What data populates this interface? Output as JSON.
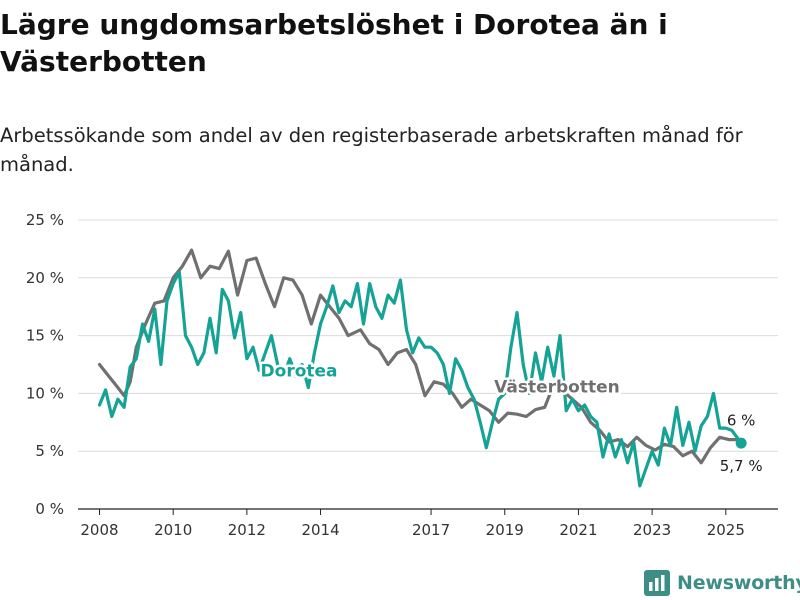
{
  "title": "Lägre ungdomsarbetslöshet i Dorotea än i Västerbotten",
  "subtitle": "Arbetssökande som andel av den registerbaserade arbetskraften månad för månad.",
  "brand": {
    "name": "Newsworthy",
    "icon": "bar-chart-logo-icon",
    "color": "#3d8f86"
  },
  "chart_data": {
    "type": "line",
    "title": "Lägre ungdomsarbetslöshet i Dorotea än i Västerbotten",
    "subtitle": "Arbetssökande som andel av den registerbaserade arbetskraften månad för månad.",
    "xlabel": "",
    "ylabel": "",
    "xlim": [
      "2007-06",
      "2026-06"
    ],
    "ylim": [
      0,
      25
    ],
    "y_ticks": [
      0,
      5,
      10,
      15,
      20,
      25
    ],
    "y_tick_labels": [
      "0 %",
      "5 %",
      "10 %",
      "15 %",
      "20 %",
      "25 %"
    ],
    "x_ticks": [
      "2008-01",
      "2010-01",
      "2012-01",
      "2014-01",
      "2017-01",
      "2019-01",
      "2021-01",
      "2023-01",
      "2025-01"
    ],
    "x_tick_labels": [
      "2008",
      "2010",
      "2012",
      "2014",
      "2017",
      "2019",
      "2021",
      "2023",
      "2025"
    ],
    "grid": true,
    "legend": "none",
    "series": [
      {
        "name": "Västerbotten",
        "color": "#707070",
        "label_anchor": "2020-06",
        "end_label": "6 %",
        "points": [
          [
            "2008-01",
            12.5
          ],
          [
            "2008-04",
            11.5
          ],
          [
            "2008-07",
            10.5
          ],
          [
            "2008-09",
            9.8
          ],
          [
            "2008-11",
            11.0
          ],
          [
            "2009-01",
            14.0
          ],
          [
            "2009-04",
            16.0
          ],
          [
            "2009-07",
            17.8
          ],
          [
            "2009-10",
            18.0
          ],
          [
            "2010-01",
            20.0
          ],
          [
            "2010-04",
            21.0
          ],
          [
            "2010-07",
            22.4
          ],
          [
            "2010-10",
            20.0
          ],
          [
            "2011-01",
            21.0
          ],
          [
            "2011-04",
            20.8
          ],
          [
            "2011-07",
            22.3
          ],
          [
            "2011-10",
            18.5
          ],
          [
            "2012-01",
            21.5
          ],
          [
            "2012-04",
            21.7
          ],
          [
            "2012-07",
            19.5
          ],
          [
            "2012-10",
            17.5
          ],
          [
            "2013-01",
            20.0
          ],
          [
            "2013-04",
            19.8
          ],
          [
            "2013-07",
            18.5
          ],
          [
            "2013-10",
            16.0
          ],
          [
            "2014-01",
            18.5
          ],
          [
            "2014-04",
            17.5
          ],
          [
            "2014-07",
            16.5
          ],
          [
            "2014-10",
            15.0
          ],
          [
            "2015-02",
            15.5
          ],
          [
            "2015-05",
            14.3
          ],
          [
            "2015-08",
            13.8
          ],
          [
            "2015-11",
            12.5
          ],
          [
            "2016-02",
            13.5
          ],
          [
            "2016-05",
            13.8
          ],
          [
            "2016-08",
            12.5
          ],
          [
            "2016-11",
            9.8
          ],
          [
            "2017-02",
            11.0
          ],
          [
            "2017-05",
            10.8
          ],
          [
            "2017-08",
            10.0
          ],
          [
            "2017-11",
            8.8
          ],
          [
            "2018-02",
            9.5
          ],
          [
            "2018-05",
            9.0
          ],
          [
            "2018-08",
            8.5
          ],
          [
            "2018-11",
            7.5
          ],
          [
            "2019-02",
            8.3
          ],
          [
            "2019-05",
            8.2
          ],
          [
            "2019-08",
            8.0
          ],
          [
            "2019-11",
            8.6
          ],
          [
            "2020-02",
            8.8
          ],
          [
            "2020-05",
            10.8
          ],
          [
            "2020-08",
            10.2
          ],
          [
            "2020-11",
            9.5
          ],
          [
            "2021-02",
            8.8
          ],
          [
            "2021-05",
            7.5
          ],
          [
            "2021-08",
            6.8
          ],
          [
            "2021-11",
            5.8
          ],
          [
            "2022-02",
            6.0
          ],
          [
            "2022-05",
            5.4
          ],
          [
            "2022-08",
            6.2
          ],
          [
            "2022-11",
            5.5
          ],
          [
            "2023-02",
            5.1
          ],
          [
            "2023-05",
            5.6
          ],
          [
            "2023-08",
            5.4
          ],
          [
            "2023-11",
            4.6
          ],
          [
            "2024-02",
            5.0
          ],
          [
            "2024-05",
            4.0
          ],
          [
            "2024-08",
            5.3
          ],
          [
            "2024-11",
            6.2
          ],
          [
            "2025-02",
            6.0
          ],
          [
            "2025-06",
            6.0
          ]
        ]
      },
      {
        "name": "Dorotea",
        "color": "#15a396",
        "label_anchor": "2013-06",
        "end_label": "5,7 %",
        "points": [
          [
            "2008-01",
            9.0
          ],
          [
            "2008-03",
            10.3
          ],
          [
            "2008-05",
            8.0
          ],
          [
            "2008-07",
            9.5
          ],
          [
            "2008-09",
            8.8
          ],
          [
            "2008-11",
            12.3
          ],
          [
            "2009-01",
            13.0
          ],
          [
            "2009-03",
            16.0
          ],
          [
            "2009-05",
            14.5
          ],
          [
            "2009-07",
            17.3
          ],
          [
            "2009-09",
            12.5
          ],
          [
            "2009-11",
            18.0
          ],
          [
            "2010-01",
            19.5
          ],
          [
            "2010-03",
            20.5
          ],
          [
            "2010-05",
            15.0
          ],
          [
            "2010-07",
            14.0
          ],
          [
            "2010-09",
            12.5
          ],
          [
            "2010-11",
            13.5
          ],
          [
            "2011-01",
            16.5
          ],
          [
            "2011-03",
            13.5
          ],
          [
            "2011-05",
            19.0
          ],
          [
            "2011-07",
            18.0
          ],
          [
            "2011-09",
            14.8
          ],
          [
            "2011-11",
            17.0
          ],
          [
            "2012-01",
            13.0
          ],
          [
            "2012-03",
            14.0
          ],
          [
            "2012-05",
            12.0
          ],
          [
            "2012-07",
            13.5
          ],
          [
            "2012-09",
            15.0
          ],
          [
            "2012-11",
            12.5
          ],
          [
            "2013-01",
            11.5
          ],
          [
            "2013-03",
            13.0
          ],
          [
            "2013-05",
            11.5
          ],
          [
            "2013-07",
            12.5
          ],
          [
            "2013-09",
            10.5
          ],
          [
            "2013-11",
            13.5
          ],
          [
            "2014-01",
            16.0
          ],
          [
            "2014-03",
            17.5
          ],
          [
            "2014-05",
            19.3
          ],
          [
            "2014-07",
            17.0
          ],
          [
            "2014-09",
            18.0
          ],
          [
            "2014-11",
            17.5
          ],
          [
            "2015-01",
            19.5
          ],
          [
            "2015-03",
            16.0
          ],
          [
            "2015-05",
            19.5
          ],
          [
            "2015-07",
            17.5
          ],
          [
            "2015-09",
            16.5
          ],
          [
            "2015-11",
            18.5
          ],
          [
            "2016-01",
            17.8
          ],
          [
            "2016-03",
            19.8
          ],
          [
            "2016-05",
            15.5
          ],
          [
            "2016-07",
            13.5
          ],
          [
            "2016-09",
            14.8
          ],
          [
            "2016-11",
            14.0
          ],
          [
            "2017-01",
            14.0
          ],
          [
            "2017-03",
            13.5
          ],
          [
            "2017-05",
            12.5
          ],
          [
            "2017-07",
            10.0
          ],
          [
            "2017-09",
            13.0
          ],
          [
            "2017-11",
            12.0
          ],
          [
            "2018-01",
            10.5
          ],
          [
            "2018-03",
            9.5
          ],
          [
            "2018-05",
            7.5
          ],
          [
            "2018-07",
            5.3
          ],
          [
            "2018-09",
            7.5
          ],
          [
            "2018-11",
            9.5
          ],
          [
            "2019-01",
            10.0
          ],
          [
            "2019-03",
            14.0
          ],
          [
            "2019-05",
            17.0
          ],
          [
            "2019-07",
            12.5
          ],
          [
            "2019-09",
            10.0
          ],
          [
            "2019-11",
            13.5
          ],
          [
            "2020-01",
            11.0
          ],
          [
            "2020-03",
            14.0
          ],
          [
            "2020-05",
            11.5
          ],
          [
            "2020-07",
            15.0
          ],
          [
            "2020-09",
            8.5
          ],
          [
            "2020-11",
            9.5
          ],
          [
            "2021-01",
            8.5
          ],
          [
            "2021-03",
            9.0
          ],
          [
            "2021-05",
            8.0
          ],
          [
            "2021-07",
            7.5
          ],
          [
            "2021-09",
            4.5
          ],
          [
            "2021-11",
            6.5
          ],
          [
            "2022-01",
            4.5
          ],
          [
            "2022-03",
            6.0
          ],
          [
            "2022-05",
            4.0
          ],
          [
            "2022-07",
            5.8
          ],
          [
            "2022-09",
            2.0
          ],
          [
            "2022-11",
            3.5
          ],
          [
            "2023-01",
            5.0
          ],
          [
            "2023-03",
            3.8
          ],
          [
            "2023-05",
            7.0
          ],
          [
            "2023-07",
            5.5
          ],
          [
            "2023-09",
            8.8
          ],
          [
            "2023-11",
            5.5
          ],
          [
            "2024-01",
            7.5
          ],
          [
            "2024-03",
            5.0
          ],
          [
            "2024-05",
            7.2
          ],
          [
            "2024-07",
            8.0
          ],
          [
            "2024-09",
            10.0
          ],
          [
            "2024-11",
            7.0
          ],
          [
            "2025-01",
            7.0
          ],
          [
            "2025-03",
            6.8
          ],
          [
            "2025-06",
            5.7
          ]
        ]
      }
    ]
  }
}
